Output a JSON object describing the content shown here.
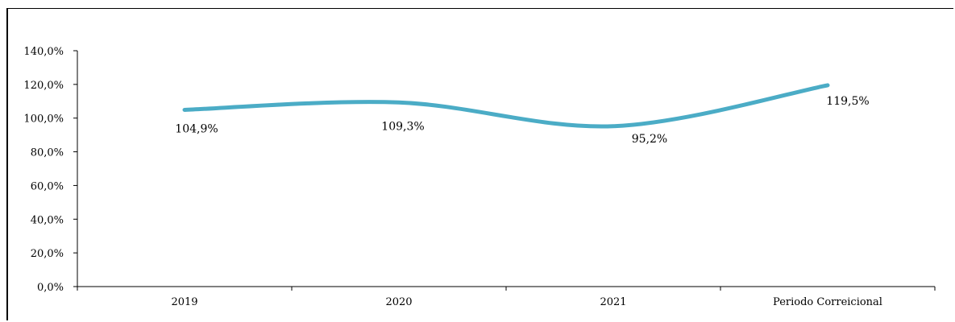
{
  "chart_data": {
    "type": "line",
    "categories": [
      "2019",
      "2020",
      "2021",
      "Periodo Correicional"
    ],
    "series": [
      {
        "values": [
          104.9,
          109.3,
          95.2,
          119.5
        ],
        "labels": [
          "104,9%",
          "109,3%",
          "95,2%",
          "119,5%"
        ],
        "color": "#4bacc6",
        "smooth": true
      }
    ],
    "y_ticks": [
      "0,0%",
      "20,0%",
      "40,0%",
      "60,0%",
      "80,0%",
      "100,0%",
      "120,0%",
      "140,0%"
    ],
    "ylim": [
      0,
      140
    ],
    "title": "",
    "xlabel": "",
    "ylabel": "",
    "grid": false,
    "legend": "none"
  }
}
